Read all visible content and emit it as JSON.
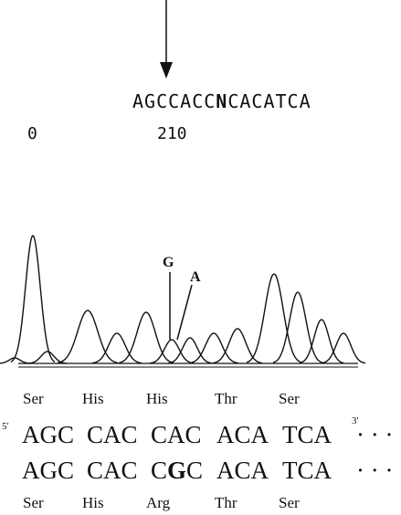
{
  "sequence": {
    "bases_before": "AGCCACC",
    "mutant_base": "N",
    "bases_after": "CACATCA",
    "positions": [
      "0",
      "210"
    ]
  },
  "peak_labels": [
    "G",
    "A"
  ],
  "wild_type": {
    "five_prime": "5'",
    "three_prime": "3'",
    "amino_acids": [
      "Ser",
      "His",
      "His",
      "Thr",
      "Ser"
    ],
    "codons": [
      "AGC",
      "CAC",
      "CAC",
      "ACA",
      "TCA"
    ],
    "continuation": "· · ·"
  },
  "mutant": {
    "amino_acids": [
      "Ser",
      "His",
      "Arg",
      "Thr",
      "Ser"
    ],
    "codons_before": [
      "AGC",
      "CAC"
    ],
    "mutated_codon": {
      "prefix": "C",
      "base": "G",
      "suffix": "C"
    },
    "codons_after": [
      "ACA",
      "TCA"
    ],
    "continuation": "· · ·"
  }
}
